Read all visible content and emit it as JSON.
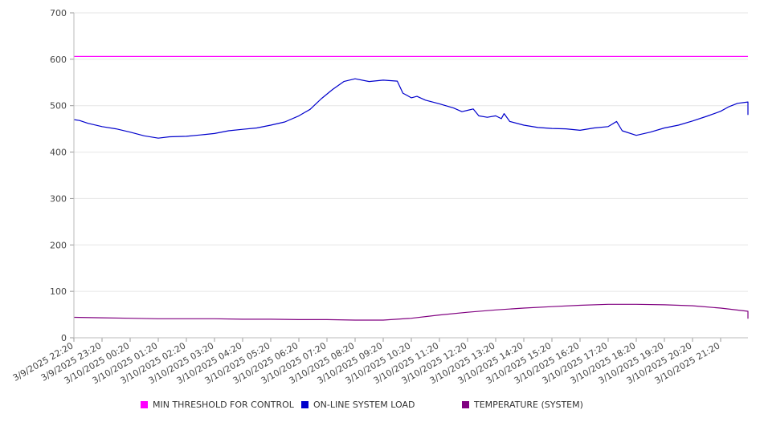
{
  "chart_data": {
    "type": "line",
    "y_ticks": [
      "0",
      "100",
      "200",
      "300",
      "400",
      "500",
      "600",
      "700"
    ],
    "ylim": [
      0,
      700
    ],
    "x_tick_labels": [
      "3/9/2025 22:20",
      "3/9/2025 23:20",
      "3/10/2025 00:20",
      "3/10/2025 01:20",
      "3/10/2025 02:20",
      "3/10/2025 03:20",
      "3/10/2025 04:20",
      "3/10/2025 05:20",
      "3/10/2025 06:20",
      "3/10/2025 07:20",
      "3/10/2025 08:20",
      "3/10/2025 09:20",
      "3/10/2025 10:20",
      "3/10/2025 11:20",
      "3/10/2025 12:20",
      "3/10/2025 13:20",
      "3/10/2025 14:20",
      "3/10/2025 15:20",
      "3/10/2025 16:20",
      "3/10/2025 17:20",
      "3/10/2025 18:20",
      "3/10/2025 19:20",
      "3/10/2025 20:20",
      "3/10/2025 21:20"
    ],
    "x_hours": [
      0,
      24
    ],
    "grid": true,
    "legend_position": "bottom",
    "series": [
      {
        "name": "MIN THRESHOLD FOR CONTROL",
        "color": "#ff00ff",
        "points": [
          [
            0,
            606
          ],
          [
            24,
            606
          ]
        ]
      },
      {
        "name": "ON-LINE SYSTEM LOAD",
        "color": "#0000cc",
        "points": [
          [
            0,
            470
          ],
          [
            0.2,
            468
          ],
          [
            0.5,
            462
          ],
          [
            1.0,
            455
          ],
          [
            1.5,
            450
          ],
          [
            2.0,
            443
          ],
          [
            2.5,
            435
          ],
          [
            3.0,
            430
          ],
          [
            3.4,
            433
          ],
          [
            4.0,
            434
          ],
          [
            4.5,
            437
          ],
          [
            5.0,
            440
          ],
          [
            5.5,
            446
          ],
          [
            6.0,
            449
          ],
          [
            6.5,
            452
          ],
          [
            7.0,
            458
          ],
          [
            7.5,
            465
          ],
          [
            8.0,
            478
          ],
          [
            8.4,
            492
          ],
          [
            8.8,
            515
          ],
          [
            9.2,
            535
          ],
          [
            9.6,
            552
          ],
          [
            10.0,
            558
          ],
          [
            10.5,
            552
          ],
          [
            11.0,
            555
          ],
          [
            11.5,
            553
          ],
          [
            11.7,
            527
          ],
          [
            12.0,
            517
          ],
          [
            12.2,
            520
          ],
          [
            12.5,
            512
          ],
          [
            13.0,
            504
          ],
          [
            13.5,
            495
          ],
          [
            13.8,
            487
          ],
          [
            14.0,
            490
          ],
          [
            14.2,
            493
          ],
          [
            14.4,
            478
          ],
          [
            14.7,
            475
          ],
          [
            15.0,
            478
          ],
          [
            15.2,
            472
          ],
          [
            15.3,
            483
          ],
          [
            15.5,
            466
          ],
          [
            16.0,
            458
          ],
          [
            16.5,
            453
          ],
          [
            17.0,
            451
          ],
          [
            17.5,
            450
          ],
          [
            18.0,
            447
          ],
          [
            18.5,
            452
          ],
          [
            19.0,
            455
          ],
          [
            19.3,
            466
          ],
          [
            19.5,
            446
          ],
          [
            20.0,
            436
          ],
          [
            20.5,
            443
          ],
          [
            21.0,
            452
          ],
          [
            21.5,
            458
          ],
          [
            22.0,
            467
          ],
          [
            22.5,
            477
          ],
          [
            23.0,
            488
          ],
          [
            23.3,
            498
          ],
          [
            23.6,
            505
          ],
          [
            24.0,
            508
          ],
          [
            24.5,
            505
          ],
          [
            25.0,
            500
          ],
          [
            25.5,
            495
          ],
          [
            26.0,
            488
          ],
          [
            26.35,
            480
          ]
        ]
      },
      {
        "name": "TEMPERATURE (SYSTEM)",
        "color": "#800080",
        "points": [
          [
            0,
            44
          ],
          [
            1,
            43
          ],
          [
            2,
            42
          ],
          [
            3,
            41
          ],
          [
            4,
            41
          ],
          [
            5,
            41
          ],
          [
            6,
            40
          ],
          [
            7,
            40
          ],
          [
            8,
            39
          ],
          [
            9,
            39
          ],
          [
            10,
            38
          ],
          [
            11,
            38
          ],
          [
            12,
            42
          ],
          [
            13,
            49
          ],
          [
            14,
            55
          ],
          [
            15,
            60
          ],
          [
            16,
            64
          ],
          [
            17,
            67
          ],
          [
            18,
            70
          ],
          [
            19,
            72
          ],
          [
            20,
            72
          ],
          [
            21,
            71
          ],
          [
            22,
            69
          ],
          [
            23,
            64
          ],
          [
            24,
            57
          ],
          [
            25,
            51
          ],
          [
            26,
            44
          ],
          [
            26.35,
            41
          ]
        ]
      }
    ]
  }
}
